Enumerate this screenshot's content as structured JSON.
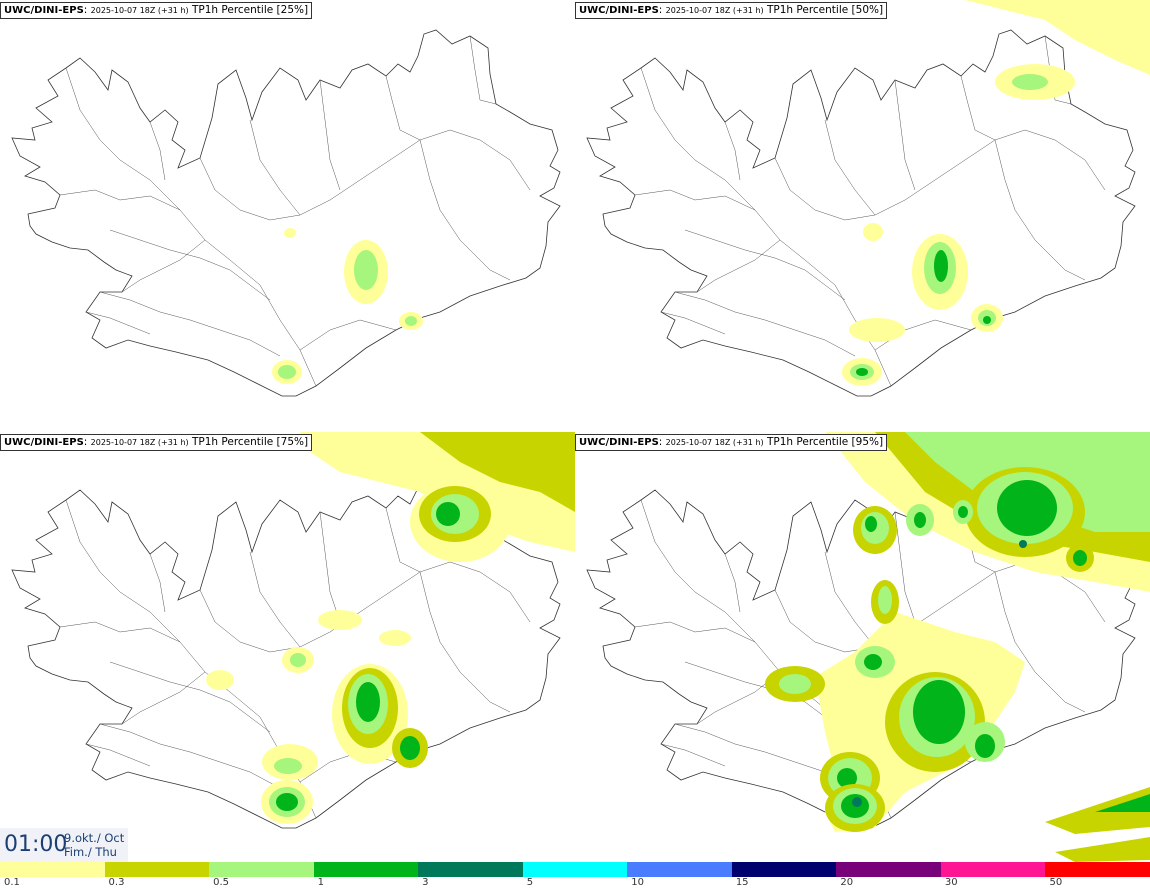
{
  "panels": [
    {
      "model": "UWC/DINI-EPS",
      "run": "2025-10-07 18Z (+31 h)",
      "product": "TP1h Percentile [25%]"
    },
    {
      "model": "UWC/DINI-EPS",
      "run": "2025-10-07 18Z (+31 h)",
      "product": "TP1h Percentile [50%]"
    },
    {
      "model": "UWC/DINI-EPS",
      "run": "2025-10-07 18Z (+31 h)",
      "product": "TP1h Percentile [75%]"
    },
    {
      "model": "UWC/DINI-EPS",
      "run": "2025-10-07 18Z (+31 h)",
      "product": "TP1h Percentile [95%]"
    }
  ],
  "valid_time": {
    "hour": "01:00",
    "date": "9.okt./ Oct",
    "weekday": "Fim./ Thu"
  },
  "legend": {
    "ticks": [
      "0.1",
      "0.3",
      "0.5",
      "1",
      "3",
      "5",
      "10",
      "15",
      "20",
      "30",
      "50"
    ],
    "colors": [
      "#ffff99",
      "#c8d400",
      "#a6f57c",
      "#00b419",
      "#00785a",
      "#00ffff",
      "#4a7cff",
      "#00006e",
      "#780078",
      "#ff1493",
      "#ff0000"
    ]
  }
}
